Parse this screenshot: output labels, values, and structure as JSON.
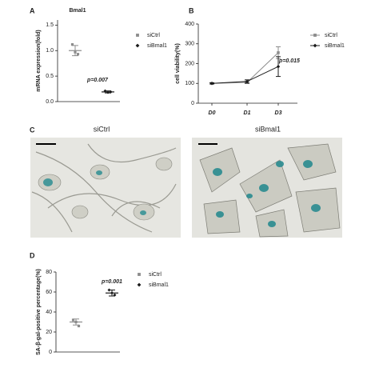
{
  "panels": [
    "A",
    "B",
    "C",
    "D"
  ],
  "images": [
    {
      "label": "siCtrl"
    },
    {
      "label": "siBmal1"
    }
  ],
  "chart_data": [
    {
      "type": "dotplot",
      "title": "Bmal1",
      "y_label": "mRNA expression(fold)",
      "annotation": "p=0.007",
      "ylim": [
        0,
        1.6
      ],
      "yticks": [
        {
          "value": 0,
          "label": "0.0"
        },
        {
          "value": 0.5,
          "label": "0.5"
        },
        {
          "value": 1,
          "label": "1.0"
        },
        {
          "value": 1.5,
          "label": "1.5"
        }
      ],
      "series": [
        {
          "name": "siCtrl",
          "color": "#8c8c8c",
          "marker": "square",
          "values": [
            1.12,
            0.97,
            0.93
          ],
          "mean": 1.0,
          "sd": 0.1
        },
        {
          "name": "siBmal1",
          "color": "#1a1a1a",
          "marker": "diamond",
          "values": [
            0.21,
            0.18,
            0.19
          ],
          "mean": 0.19,
          "sd": 0.02
        }
      ]
    },
    {
      "type": "line",
      "y_label": "cell viability(%)",
      "annotation": "p=0.015",
      "categories": [
        "D0",
        "D1",
        "D3"
      ],
      "ylim": [
        0,
        400
      ],
      "yticks": [
        0,
        100,
        200,
        300,
        400
      ],
      "series": [
        {
          "name": "siCtrl",
          "color": "#8c8c8c",
          "marker": "square",
          "values": [
            100,
            105,
            255
          ],
          "errors": [
            3,
            6,
            30
          ]
        },
        {
          "name": "siBmal1",
          "color": "#1a1a1a",
          "marker": "diamond",
          "values": [
            100,
            110,
            185
          ],
          "errors": [
            3,
            8,
            50
          ]
        }
      ]
    },
    {
      "type": "dotplot",
      "y_label": "SA-β-gal-positive percentage(%)",
      "annotation": "p=0.001",
      "ylim": [
        0,
        80
      ],
      "yticks": [
        0,
        20,
        40,
        60,
        80
      ],
      "series": [
        {
          "name": "siCtrl",
          "color": "#8c8c8c",
          "marker": "square",
          "values": [
            32,
            30,
            26
          ],
          "mean": 30,
          "sd": 3
        },
        {
          "name": "siBmal1",
          "color": "#1a1a1a",
          "marker": "diamond",
          "values": [
            62,
            59,
            57
          ],
          "mean": 59,
          "sd": 3
        }
      ]
    }
  ]
}
